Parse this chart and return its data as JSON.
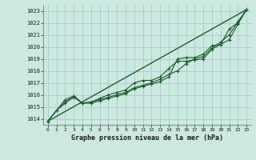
{
  "title": "Graphe pression niveau de la mer (hPa)",
  "bg_color": "#cce8e0",
  "grid_color": "#aacfc8",
  "line_color": "#1a5e2a",
  "xlim": [
    -0.5,
    23.5
  ],
  "ylim": [
    1013.5,
    1023.5
  ],
  "xticks": [
    0,
    1,
    2,
    3,
    4,
    5,
    6,
    7,
    8,
    9,
    10,
    11,
    12,
    13,
    14,
    15,
    16,
    17,
    18,
    19,
    20,
    21,
    22,
    23
  ],
  "yticks": [
    1014,
    1015,
    1016,
    1017,
    1018,
    1019,
    1020,
    1021,
    1022,
    1023
  ],
  "line1_x": [
    0,
    1,
    2,
    3,
    4,
    5,
    6,
    7,
    8,
    9,
    10,
    11,
    12,
    13,
    14,
    15,
    16,
    17,
    18,
    19,
    20,
    21,
    22,
    23
  ],
  "line1_y": [
    1013.8,
    1014.7,
    1015.3,
    1015.8,
    1015.3,
    1015.4,
    1015.6,
    1015.8,
    1016.0,
    1016.2,
    1016.6,
    1016.8,
    1017.0,
    1017.3,
    1017.7,
    1018.0,
    1018.6,
    1019.0,
    1019.2,
    1019.9,
    1020.4,
    1021.0,
    1022.1,
    1023.1
  ],
  "line2_x": [
    0,
    1,
    2,
    3,
    4,
    5,
    6,
    7,
    8,
    9,
    10,
    11,
    12,
    13,
    14,
    15,
    16,
    17,
    18,
    19,
    20,
    21,
    22,
    23
  ],
  "line2_y": [
    1013.8,
    1014.7,
    1015.4,
    1015.9,
    1015.3,
    1015.4,
    1015.7,
    1016.0,
    1016.2,
    1016.4,
    1017.0,
    1017.2,
    1017.2,
    1017.5,
    1018.2,
    1018.8,
    1018.8,
    1018.9,
    1019.0,
    1019.8,
    1020.2,
    1020.6,
    1021.9,
    1023.1
  ],
  "line3_x": [
    0,
    23
  ],
  "line3_y": [
    1013.8,
    1023.1
  ],
  "line4_x": [
    0,
    2,
    3,
    4,
    5,
    6,
    7,
    8,
    9,
    10,
    11,
    12,
    13,
    14,
    15,
    16,
    17,
    18,
    19,
    20,
    21,
    22,
    23
  ],
  "line4_y": [
    1013.8,
    1015.6,
    1015.9,
    1015.3,
    1015.3,
    1015.5,
    1015.7,
    1015.9,
    1016.1,
    1016.5,
    1016.7,
    1016.9,
    1017.1,
    1017.5,
    1019.0,
    1019.1,
    1019.1,
    1019.4,
    1020.1,
    1020.2,
    1021.5,
    1022.0,
    1023.1
  ]
}
